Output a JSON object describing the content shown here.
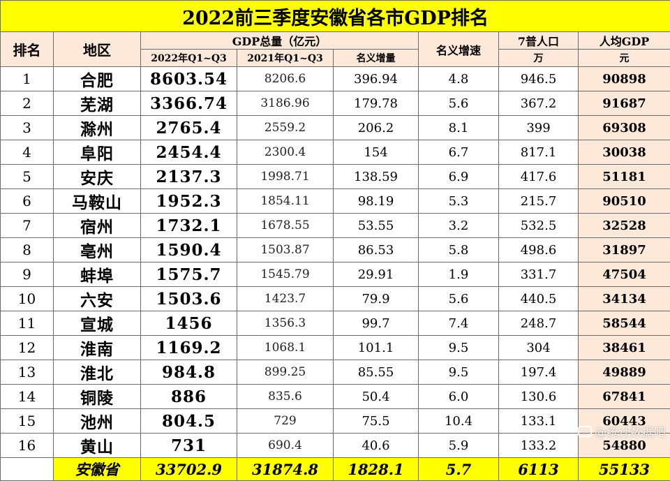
{
  "title": "2022前三季度安徽省各市GDP排名",
  "headers": {
    "rank": "排名",
    "region": "地区",
    "gdp_group": "GDP总量（亿元）",
    "gdp_2022": "2022年Q1~Q3",
    "gdp_2021": "2021年Q1~Q3",
    "increase": "名义增量",
    "rate": "名义增速",
    "pop_top": "7普人口",
    "pop_unit": "万",
    "pc_top": "人均GDP",
    "pc_unit": "元"
  },
  "rows": [
    {
      "rank": "1",
      "region": "合肥",
      "gdp_2022": "8603.54",
      "gdp_2021": "8206.6",
      "increase": "396.94",
      "rate": "4.8",
      "pop": "946.5",
      "per_capita": "90898"
    },
    {
      "rank": "2",
      "region": "芜湖",
      "gdp_2022": "3366.74",
      "gdp_2021": "3186.96",
      "increase": "179.78",
      "rate": "5.6",
      "pop": "367.2",
      "per_capita": "91687"
    },
    {
      "rank": "3",
      "region": "滁州",
      "gdp_2022": "2765.4",
      "gdp_2021": "2559.2",
      "increase": "206.2",
      "rate": "8.1",
      "pop": "399",
      "per_capita": "69308"
    },
    {
      "rank": "4",
      "region": "阜阳",
      "gdp_2022": "2454.4",
      "gdp_2021": "2300.4",
      "increase": "154",
      "rate": "6.7",
      "pop": "817.1",
      "per_capita": "30038"
    },
    {
      "rank": "5",
      "region": "安庆",
      "gdp_2022": "2137.3",
      "gdp_2021": "1998.71",
      "increase": "138.59",
      "rate": "6.9",
      "pop": "417.6",
      "per_capita": "51181"
    },
    {
      "rank": "6",
      "region": "马鞍山",
      "gdp_2022": "1952.3",
      "gdp_2021": "1854.11",
      "increase": "98.19",
      "rate": "5.3",
      "pop": "215.7",
      "per_capita": "90510"
    },
    {
      "rank": "7",
      "region": "宿州",
      "gdp_2022": "1732.1",
      "gdp_2021": "1678.55",
      "increase": "53.55",
      "rate": "3.2",
      "pop": "532.5",
      "per_capita": "32528"
    },
    {
      "rank": "8",
      "region": "亳州",
      "gdp_2022": "1590.4",
      "gdp_2021": "1503.87",
      "increase": "86.53",
      "rate": "5.8",
      "pop": "498.6",
      "per_capita": "31897"
    },
    {
      "rank": "9",
      "region": "蚌埠",
      "gdp_2022": "1575.7",
      "gdp_2021": "1545.79",
      "increase": "29.91",
      "rate": "1.9",
      "pop": "331.7",
      "per_capita": "47504"
    },
    {
      "rank": "10",
      "region": "六安",
      "gdp_2022": "1503.6",
      "gdp_2021": "1423.7",
      "increase": "79.9",
      "rate": "5.6",
      "pop": "440.5",
      "per_capita": "34134"
    },
    {
      "rank": "11",
      "region": "宣城",
      "gdp_2022": "1456",
      "gdp_2021": "1356.3",
      "increase": "99.7",
      "rate": "7.4",
      "pop": "248.7",
      "per_capita": "58544"
    },
    {
      "rank": "12",
      "region": "淮南",
      "gdp_2022": "1169.2",
      "gdp_2021": "1068.1",
      "increase": "101.1",
      "rate": "9.5",
      "pop": "304",
      "per_capita": "38461"
    },
    {
      "rank": "13",
      "region": "淮北",
      "gdp_2022": "984.8",
      "gdp_2021": "899.25",
      "increase": "85.55",
      "rate": "9.5",
      "pop": "197.4",
      "per_capita": "49889"
    },
    {
      "rank": "14",
      "region": "铜陵",
      "gdp_2022": "886",
      "gdp_2021": "835.6",
      "increase": "50.4",
      "rate": "6.0",
      "pop": "130.6",
      "per_capita": "67841"
    },
    {
      "rank": "15",
      "region": "池州",
      "gdp_2022": "804.5",
      "gdp_2021": "729",
      "increase": "75.5",
      "rate": "10.4",
      "pop": "133.1",
      "per_capita": "60443"
    },
    {
      "rank": "16",
      "region": "黄山",
      "gdp_2022": "731",
      "gdp_2021": "690.4",
      "increase": "40.6",
      "rate": "5.9",
      "pop": "133.2",
      "per_capita": "54880"
    }
  ],
  "total": {
    "region": "安徽省",
    "gdp_2022": "33702.9",
    "gdp_2021": "31874.8",
    "increase": "1828.1",
    "rate": "5.7",
    "pop": "6113",
    "per_capita": "55133"
  },
  "watermark": "@统计数据吧",
  "colors": {
    "title_bg": "#ffff00",
    "header_bg": "#fde9d9",
    "per_capita_bg": "#fde9d9",
    "total_bg": "#ffff00",
    "border": "#6b6b6b"
  }
}
